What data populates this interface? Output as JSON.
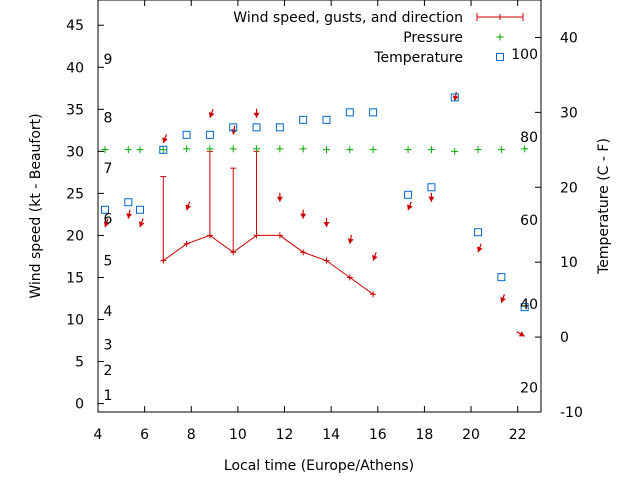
{
  "chart_data": {
    "type": "line",
    "xlabel": "Local time (Europe/Athens)",
    "ylabel": "Wind speed (kt - Beaufort)",
    "y2label": "Temperature (C - F)",
    "xlim": [
      4,
      23
    ],
    "ylim": [
      -1,
      48
    ],
    "y2lim": [
      -10,
      45
    ],
    "x_ticks": [
      4,
      6,
      8,
      10,
      12,
      14,
      16,
      18,
      20,
      22
    ],
    "y_ticks": [
      0,
      5,
      10,
      15,
      20,
      25,
      30,
      35,
      40,
      45
    ],
    "y2_ticks": [
      -10,
      0,
      10,
      20,
      30,
      40
    ],
    "beaufort_labels": [
      {
        "label": "1",
        "y": 1
      },
      {
        "label": "2",
        "y": 4
      },
      {
        "label": "3",
        "y": 7
      },
      {
        "label": "4",
        "y": 11
      },
      {
        "label": "5",
        "y": 17
      },
      {
        "label": "6",
        "y": 22
      },
      {
        "label": "7",
        "y": 28
      },
      {
        "label": "8",
        "y": 34
      },
      {
        "label": "9",
        "y": 41
      }
    ],
    "fahrenheit_labels": [
      {
        "label": "20",
        "temp_c": -6.7
      },
      {
        "label": "40",
        "temp_c": 4.4
      },
      {
        "label": "60",
        "temp_c": 15.6
      },
      {
        "label": "80",
        "temp_c": 26.7
      },
      {
        "label": "100",
        "temp_c": 37.8
      }
    ],
    "legend": {
      "placement": "top-right",
      "entries": [
        {
          "label": "Wind speed, gusts, and direction",
          "color": "#cc0000",
          "marker": "errorbar"
        },
        {
          "label": "Pressure",
          "color": "#00aa00",
          "marker": "plus"
        },
        {
          "label": "Temperature",
          "color": "#0066cc",
          "marker": "square"
        }
      ]
    },
    "series": [
      {
        "name": "Wind speed, gusts, and direction",
        "color": "#cc0000",
        "points": [
          {
            "x": 6.8,
            "speed": 17,
            "gust": 27
          },
          {
            "x": 7.8,
            "speed": 19,
            "gust": 19
          },
          {
            "x": 8.8,
            "speed": 20,
            "gust": 30
          },
          {
            "x": 9.8,
            "speed": 18,
            "gust": 28
          },
          {
            "x": 10.8,
            "speed": 20,
            "gust": 30
          },
          {
            "x": 11.8,
            "speed": 20,
            "gust": 20
          },
          {
            "x": 12.8,
            "speed": 18,
            "gust": 18
          },
          {
            "x": 13.8,
            "speed": 17,
            "gust": 17
          },
          {
            "x": 14.8,
            "speed": 15,
            "gust": 15
          },
          {
            "x": 15.8,
            "speed": 13,
            "gust": 13
          }
        ],
        "direction_arrows": [
          {
            "x": 4.3,
            "y": 21,
            "dir_deg": 20
          },
          {
            "x": 5.3,
            "y": 22,
            "dir_deg": 10
          },
          {
            "x": 5.8,
            "y": 21,
            "dir_deg": 20
          },
          {
            "x": 6.8,
            "y": 31,
            "dir_deg": 20
          },
          {
            "x": 7.8,
            "y": 23,
            "dir_deg": 20
          },
          {
            "x": 8.8,
            "y": 34,
            "dir_deg": 20
          },
          {
            "x": 9.8,
            "y": 32,
            "dir_deg": 10
          },
          {
            "x": 10.8,
            "y": 34,
            "dir_deg": 0
          },
          {
            "x": 11.8,
            "y": 24,
            "dir_deg": 0
          },
          {
            "x": 12.8,
            "y": 22,
            "dir_deg": 0
          },
          {
            "x": 13.8,
            "y": 21,
            "dir_deg": 0
          },
          {
            "x": 14.8,
            "y": 19,
            "dir_deg": 10
          },
          {
            "x": 15.8,
            "y": 17,
            "dir_deg": 20
          },
          {
            "x": 17.3,
            "y": 23,
            "dir_deg": 20
          },
          {
            "x": 18.3,
            "y": 24,
            "dir_deg": 0
          },
          {
            "x": 19.3,
            "y": 36,
            "dir_deg": 10
          },
          {
            "x": 20.3,
            "y": 18,
            "dir_deg": 20
          },
          {
            "x": 21.3,
            "y": 12,
            "dir_deg": 20
          },
          {
            "x": 22.3,
            "y": 8,
            "dir_deg": 300
          }
        ]
      },
      {
        "name": "Pressure",
        "color": "#00aa00",
        "axis": "y",
        "points": [
          {
            "x": 4.3,
            "y": 30.2
          },
          {
            "x": 5.3,
            "y": 30.2
          },
          {
            "x": 5.8,
            "y": 30.2
          },
          {
            "x": 6.8,
            "y": 30.2
          },
          {
            "x": 7.8,
            "y": 30.3
          },
          {
            "x": 8.8,
            "y": 30.3
          },
          {
            "x": 9.8,
            "y": 30.3
          },
          {
            "x": 10.8,
            "y": 30.3
          },
          {
            "x": 11.8,
            "y": 30.3
          },
          {
            "x": 12.8,
            "y": 30.3
          },
          {
            "x": 13.8,
            "y": 30.2
          },
          {
            "x": 14.8,
            "y": 30.2
          },
          {
            "x": 15.8,
            "y": 30.2
          },
          {
            "x": 17.3,
            "y": 30.2
          },
          {
            "x": 18.3,
            "y": 30.2
          },
          {
            "x": 19.3,
            "y": 30.0
          },
          {
            "x": 20.3,
            "y": 30.2
          },
          {
            "x": 21.3,
            "y": 30.2
          },
          {
            "x": 22.3,
            "y": 30.3
          }
        ]
      },
      {
        "name": "Temperature",
        "color": "#0066cc",
        "axis": "y2",
        "points": [
          {
            "x": 4.3,
            "y": 17
          },
          {
            "x": 5.3,
            "y": 18
          },
          {
            "x": 5.8,
            "y": 17
          },
          {
            "x": 6.8,
            "y": 25
          },
          {
            "x": 7.8,
            "y": 27
          },
          {
            "x": 8.8,
            "y": 27
          },
          {
            "x": 9.8,
            "y": 28
          },
          {
            "x": 10.8,
            "y": 28
          },
          {
            "x": 11.8,
            "y": 28
          },
          {
            "x": 12.8,
            "y": 29
          },
          {
            "x": 13.8,
            "y": 29
          },
          {
            "x": 14.8,
            "y": 30
          },
          {
            "x": 15.8,
            "y": 30
          },
          {
            "x": 17.3,
            "y": 19
          },
          {
            "x": 18.3,
            "y": 20
          },
          {
            "x": 19.3,
            "y": 32
          },
          {
            "x": 20.3,
            "y": 14
          },
          {
            "x": 21.3,
            "y": 8
          },
          {
            "x": 22.3,
            "y": 4
          }
        ]
      }
    ]
  }
}
